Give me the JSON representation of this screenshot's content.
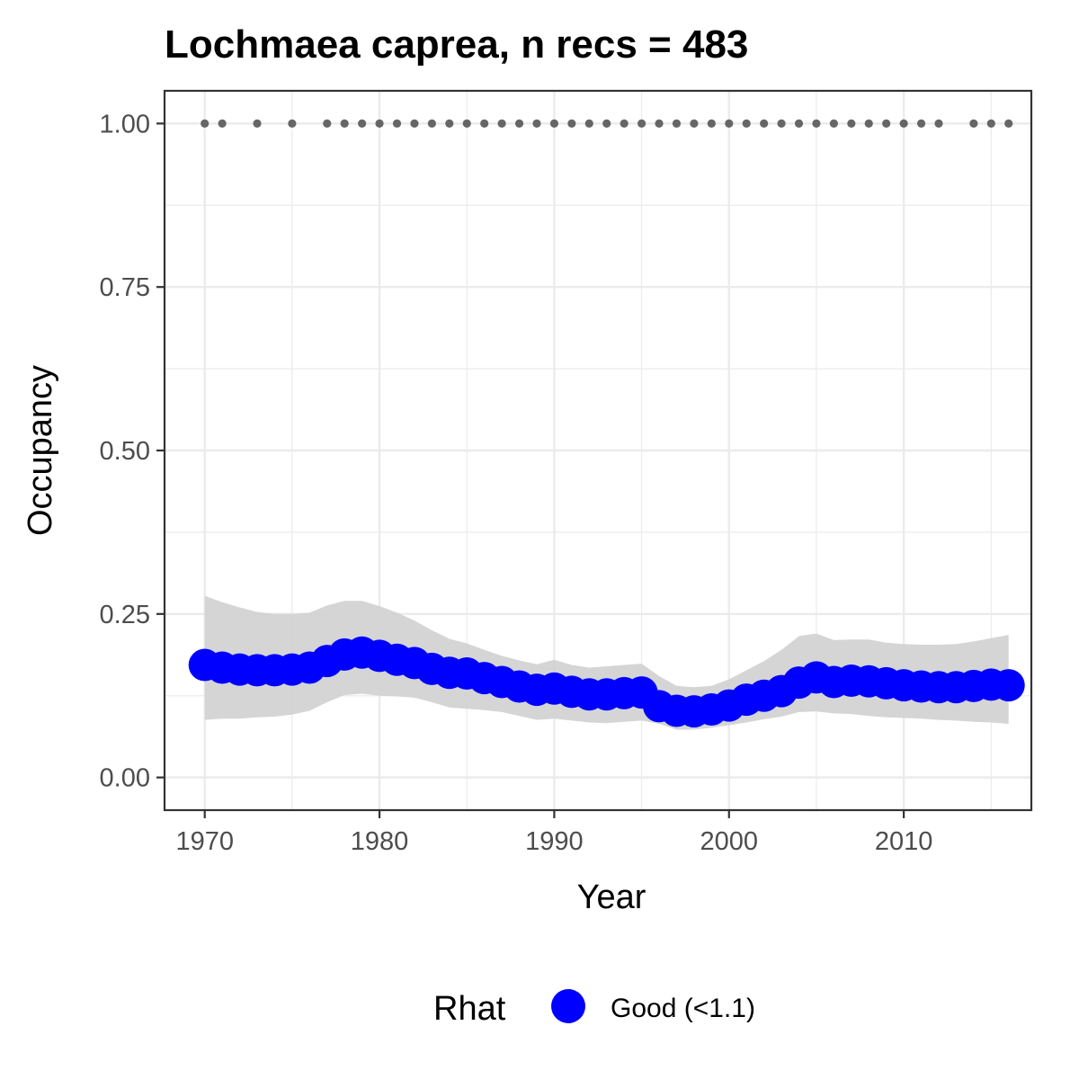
{
  "chart_data": {
    "type": "line",
    "title": "Lochmaea caprea, n recs = 483",
    "xlabel": "Year",
    "ylabel": "Occupancy",
    "xlim": [
      1967.7,
      2017.3
    ],
    "ylim": [
      -0.05,
      1.05
    ],
    "x_ticks": [
      1970,
      1980,
      1990,
      2000,
      2010
    ],
    "x_tick_labels": [
      "1970",
      "1980",
      "1990",
      "2000",
      "2010"
    ],
    "y_ticks": [
      0,
      0.25,
      0.5,
      0.75,
      1.0
    ],
    "y_tick_labels": [
      "0.00",
      "0.25",
      "0.50",
      "0.75",
      "1.00"
    ],
    "grid": true,
    "legend": {
      "title": "Rhat",
      "position": "bottom",
      "entries": [
        {
          "label": "Good (<1.1)",
          "color": "#0000ff"
        }
      ]
    },
    "colors": {
      "occupancy": "#0000ff",
      "ribbon": "#d3d3d3",
      "records": "#666666"
    },
    "series": [
      {
        "name": "Good (<1.1)",
        "x": [
          1970,
          1971,
          1972,
          1973,
          1974,
          1975,
          1976,
          1977,
          1978,
          1979,
          1980,
          1981,
          1982,
          1983,
          1984,
          1985,
          1986,
          1987,
          1988,
          1989,
          1990,
          1991,
          1992,
          1993,
          1994,
          1995,
          1996,
          1997,
          1998,
          1999,
          2000,
          2001,
          2002,
          2003,
          2004,
          2005,
          2006,
          2007,
          2008,
          2009,
          2010,
          2011,
          2012,
          2013,
          2014,
          2015,
          2016
        ],
        "y": [
          0.172,
          0.168,
          0.165,
          0.164,
          0.164,
          0.165,
          0.168,
          0.178,
          0.188,
          0.191,
          0.186,
          0.18,
          0.175,
          0.166,
          0.16,
          0.159,
          0.152,
          0.146,
          0.139,
          0.134,
          0.136,
          0.131,
          0.127,
          0.127,
          0.129,
          0.13,
          0.109,
          0.102,
          0.101,
          0.104,
          0.11,
          0.119,
          0.125,
          0.132,
          0.145,
          0.153,
          0.146,
          0.148,
          0.147,
          0.144,
          0.141,
          0.139,
          0.138,
          0.138,
          0.14,
          0.142,
          0.141
        ],
        "lower": [
          0.088,
          0.09,
          0.09,
          0.092,
          0.093,
          0.096,
          0.102,
          0.115,
          0.126,
          0.128,
          0.125,
          0.124,
          0.122,
          0.115,
          0.107,
          0.105,
          0.103,
          0.1,
          0.094,
          0.088,
          0.09,
          0.087,
          0.084,
          0.083,
          0.085,
          0.087,
          0.082,
          0.073,
          0.073,
          0.076,
          0.08,
          0.084,
          0.089,
          0.093,
          0.1,
          0.101,
          0.098,
          0.097,
          0.094,
          0.092,
          0.091,
          0.09,
          0.088,
          0.087,
          0.085,
          0.084,
          0.082
        ],
        "upper": [
          0.278,
          0.268,
          0.26,
          0.253,
          0.25,
          0.25,
          0.252,
          0.263,
          0.27,
          0.27,
          0.262,
          0.252,
          0.24,
          0.225,
          0.212,
          0.205,
          0.195,
          0.186,
          0.179,
          0.173,
          0.18,
          0.172,
          0.168,
          0.17,
          0.172,
          0.174,
          0.155,
          0.14,
          0.138,
          0.14,
          0.15,
          0.164,
          0.178,
          0.195,
          0.216,
          0.22,
          0.21,
          0.211,
          0.211,
          0.206,
          0.204,
          0.203,
          0.203,
          0.204,
          0.208,
          0.213,
          0.218
        ]
      }
    ],
    "record_years": [
      1970,
      1971,
      1973,
      1975,
      1977,
      1978,
      1979,
      1980,
      1981,
      1982,
      1983,
      1984,
      1985,
      1986,
      1987,
      1988,
      1989,
      1990,
      1991,
      1992,
      1993,
      1994,
      1995,
      1996,
      1997,
      1998,
      1999,
      2000,
      2001,
      2002,
      2003,
      2004,
      2005,
      2006,
      2007,
      2008,
      2009,
      2010,
      2011,
      2012,
      2014,
      2015,
      2016
    ],
    "record_value": 1.0
  }
}
